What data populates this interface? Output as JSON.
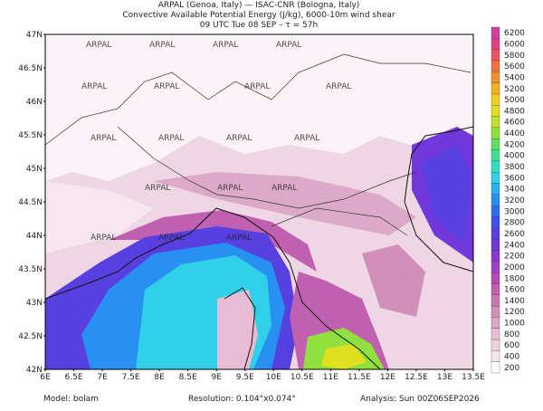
{
  "header": {
    "lines": [
      "ARPAL (Genoa, Italy)  —  ISAC-CNR (Bologna, Italy)",
      "Convective Available Potential Energy (J/kg), 6000-10m wind shear",
      "09 UTC Tue 08 SEP  –  τ = 57h"
    ]
  },
  "map": {
    "lat_ticks": [
      "42N",
      "42.5N",
      "43N",
      "43.5N",
      "44N",
      "44.5N",
      "45N",
      "45.5N",
      "46N",
      "46.5N",
      "47N"
    ],
    "lon_ticks": [
      "6E",
      "6.5E",
      "7E",
      "7.5E",
      "8E",
      "8.5E",
      "9E",
      "9.5E",
      "10E",
      "10.5E",
      "11E",
      "11.5E",
      "12E",
      "12.5E",
      "13E",
      "13.5E"
    ],
    "watermark": "ARPAL"
  },
  "colorbar": {
    "levels": [
      200,
      400,
      600,
      800,
      1000,
      1200,
      1400,
      1600,
      1800,
      2000,
      2200,
      2400,
      2600,
      2800,
      3000,
      3200,
      3400,
      3600,
      3800,
      4000,
      4200,
      4400,
      4600,
      4800,
      5000,
      5200,
      5400,
      5600,
      5800,
      6000,
      6200
    ],
    "colors": [
      "#ffffff",
      "#f6e6ee",
      "#f0d0e0",
      "#e8bcd4",
      "#dca8c8",
      "#d090b8",
      "#c878b0",
      "#c060b0",
      "#b848b8",
      "#a040c8",
      "#8838d0",
      "#7038d8",
      "#5840e0",
      "#4050e8",
      "#3070f0",
      "#2890f0",
      "#28b0f0",
      "#30d0e8",
      "#30e0c0",
      "#40e090",
      "#60e060",
      "#90e040",
      "#c0e030",
      "#e0e020",
      "#f0d020",
      "#f0b020",
      "#f09030",
      "#f07040",
      "#f05060",
      "#e04080",
      "#d040a0"
    ]
  },
  "footer": {
    "model": "Model: bolam",
    "resolution": "Resolution: 0.104°x0.074°",
    "analysis": "Analysis: Sun 00Z06SEP2026"
  }
}
